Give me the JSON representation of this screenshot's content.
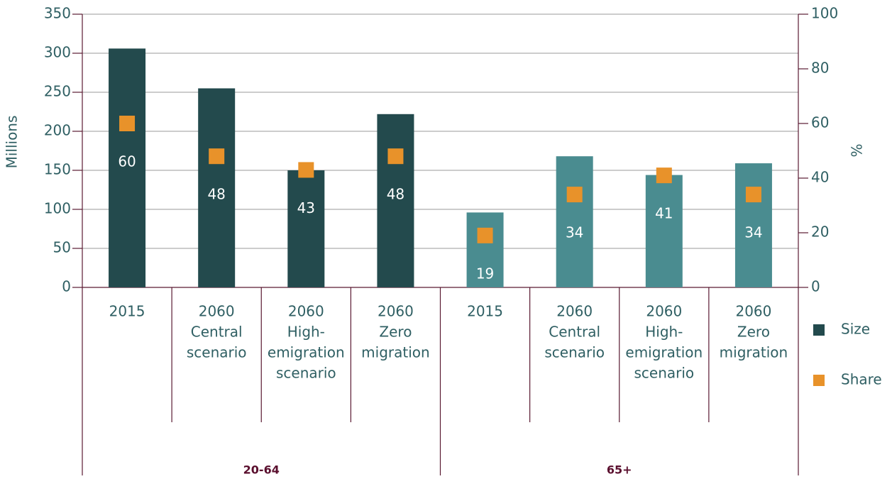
{
  "chart_data": {
    "type": "bar",
    "ylabel": "Millions",
    "y2label": "%",
    "categories": [
      [
        "2015"
      ],
      [
        "2060",
        "Central",
        "scenario"
      ],
      [
        "2060",
        "High-",
        "emigration",
        "scenario"
      ],
      [
        "2060",
        "Zero",
        "migration"
      ],
      [
        "2015"
      ],
      [
        "2060",
        "Central",
        "scenario"
      ],
      [
        "2060",
        "High-",
        "emigration",
        "scenario"
      ],
      [
        "2060",
        "Zero",
        "migration"
      ]
    ],
    "group_labels": [
      "20-64",
      "65+"
    ],
    "series": [
      {
        "name": "Size",
        "color": "#234a4d",
        "colors": [
          "#234a4d",
          "#234a4d",
          "#234a4d",
          "#234a4d",
          "#4a8c90",
          "#4a8c90",
          "#4a8c90",
          "#4a8c90"
        ],
        "values": [
          306,
          255,
          150,
          222,
          96,
          168,
          144,
          159
        ]
      },
      {
        "name": "Share",
        "color": "#e8922a",
        "axis": "y2",
        "marker": "square",
        "values": [
          60,
          48,
          43,
          48,
          19,
          34,
          41,
          34
        ]
      }
    ],
    "ylim": [
      0,
      350
    ],
    "yticks": [
      0,
      50,
      100,
      150,
      200,
      250,
      300,
      350
    ],
    "y2lim": [
      0,
      100
    ],
    "y2ticks": [
      0,
      20,
      40,
      60,
      80,
      100
    ],
    "grid": true,
    "legend": "right"
  }
}
